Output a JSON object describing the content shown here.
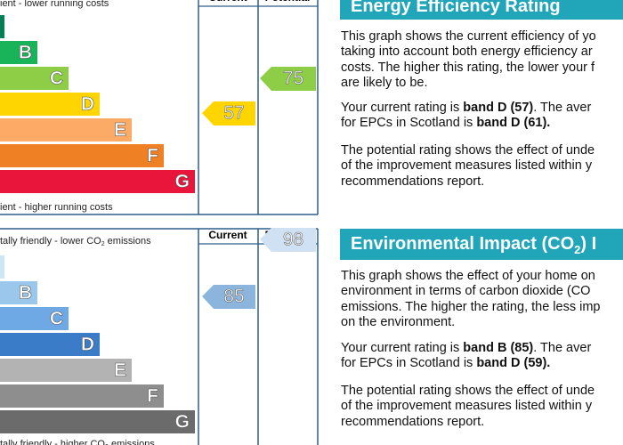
{
  "energy": {
    "title": "Energy Efficiency Rating",
    "headers": [
      "Current",
      "Potential"
    ],
    "top_note": "ient - lower running costs",
    "bottom_note": "ient - higher running costs",
    "bands": [
      null,
      "B",
      "C",
      "D",
      "E",
      "F",
      "G"
    ],
    "current": 57,
    "potential": 75,
    "paragraphs": [
      [
        [
          "This graph shows the current efficiency of yo"
        ],
        [
          "taking into account both energy efficiency ar"
        ],
        [
          "costs. The higher this rating, the lower your f"
        ],
        [
          "are likely to be."
        ]
      ],
      [
        [
          "Your current rating is ",
          "band D (57)",
          ". The aver"
        ],
        [
          "for EPCs in Scotland is ",
          "band D (61)."
        ]
      ],
      [
        [
          "The potential rating shows the effect of unde"
        ],
        [
          "of the improvement measures listed within y"
        ],
        [
          "recommendations report."
        ]
      ]
    ]
  },
  "environment": {
    "title": [
      "Environmental Impact (CO",
      "2",
      ") I"
    ],
    "headers": [
      "Current",
      "Potential"
    ],
    "top_note": [
      "tally friendly - lower CO",
      "2",
      " emissions"
    ],
    "bottom_note": [
      "tally friendly - higher CO",
      "2",
      " emissions"
    ],
    "bands": [
      null,
      "B",
      "C",
      "D",
      "E",
      "F",
      "G"
    ],
    "current": 85,
    "potential": 98,
    "paragraphs": [
      [
        [
          "This graph shows the effect of your home on"
        ],
        [
          "environment in terms of carbon dioxide (CO"
        ],
        [
          "emissions. The higher the rating, the less imp"
        ],
        [
          "on the environment."
        ]
      ],
      [
        [
          "Your current rating is ",
          "band B (85)",
          ". The aver"
        ],
        [
          "for EPCs in Scotland is ",
          "band D (59)."
        ]
      ],
      [
        [
          "The potential rating shows the effect of unde"
        ],
        [
          "of the improvement measures listed within y"
        ],
        [
          "recommendations report."
        ]
      ]
    ]
  }
}
